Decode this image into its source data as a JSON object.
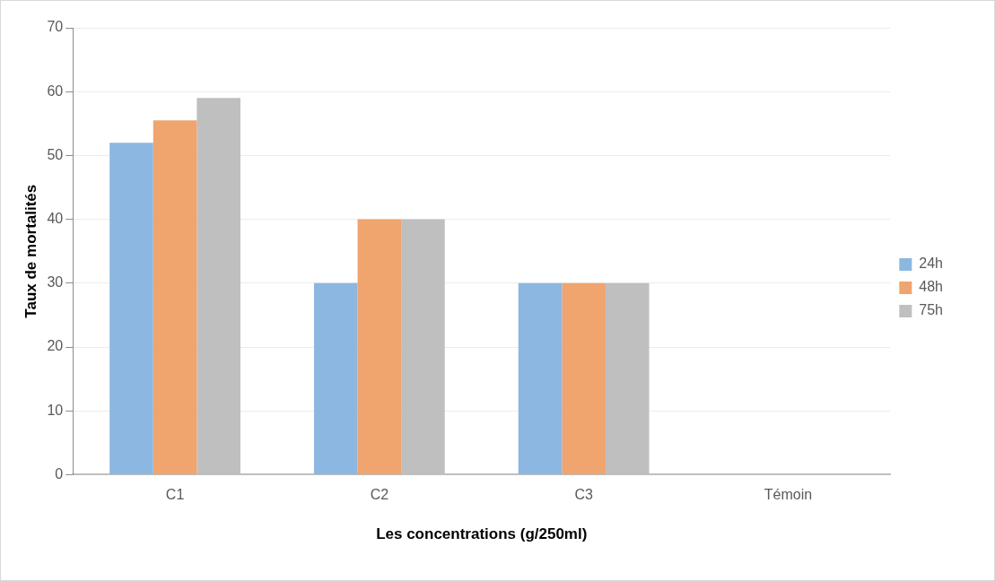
{
  "chart_data": {
    "type": "bar",
    "xlabel": "Les concentrations (g/250ml)",
    "ylabel": "Taux de mortalités",
    "categories": [
      "C1",
      "C2",
      "C3",
      "Témoin"
    ],
    "series": [
      {
        "name": "24h",
        "color": "#8cb7e0",
        "values": [
          52,
          30,
          30,
          0
        ]
      },
      {
        "name": "48h",
        "color": "#f0a46e",
        "values": [
          55.5,
          40,
          30,
          0
        ]
      },
      {
        "name": "75h",
        "color": "#bfbfbf",
        "values": [
          59,
          40,
          30,
          0
        ]
      }
    ],
    "ylim": [
      0,
      70
    ],
    "yticks": [
      0,
      10,
      20,
      30,
      40,
      50,
      60,
      70
    ],
    "grid": "y",
    "legend": "right"
  }
}
